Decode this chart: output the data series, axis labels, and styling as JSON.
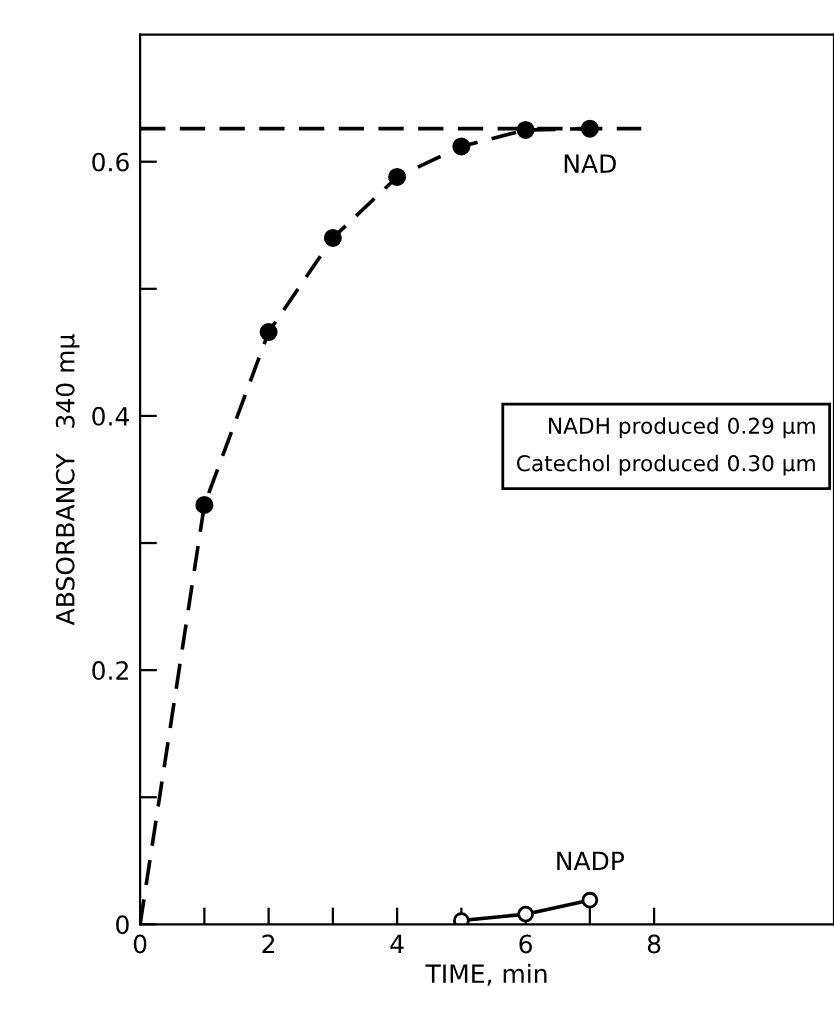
{
  "chart_data": {
    "type": "scatter",
    "xlabel": "TIME, min",
    "ylabel": "ABSORBANCY   340 mμ",
    "xlim": [
      0,
      10.8
    ],
    "ylim": [
      0,
      0.7
    ],
    "xticks": [
      0,
      {
        "value": 1,
        "label": null
      },
      2,
      {
        "value": 3,
        "label": null
      },
      4,
      {
        "value": 5,
        "label": null
      },
      6,
      {
        "value": 7,
        "label": null
      },
      8
    ],
    "yticks": [
      0,
      {
        "value": 0.1,
        "label": null
      },
      0.2,
      {
        "value": 0.3,
        "label": null
      },
      0.4,
      {
        "value": 0.5,
        "label": null
      },
      0.6
    ],
    "grid": false,
    "legend": false,
    "series": [
      {
        "type": "line",
        "color": "#000000",
        "line_style": "dashed",
        "marker": "none",
        "x": [
          0,
          1,
          2,
          3,
          4,
          5,
          6,
          7
        ],
        "values": [
          0,
          0.33,
          0.466,
          0.54,
          0.588,
          0.612,
          0.625,
          0.626
        ]
      },
      {
        "type": "line",
        "color": "#000000",
        "line_style": "dashed",
        "marker": "none",
        "x": [
          0,
          7.8
        ],
        "values": [
          0.626,
          0.626
        ]
      },
      {
        "name": "NAD",
        "color": "#000000",
        "marker": "circle",
        "x": [
          1,
          2,
          3,
          4,
          5,
          6,
          7
        ],
        "values": [
          0.33,
          0.466,
          0.54,
          0.588,
          0.612,
          0.625,
          0.626
        ]
      },
      {
        "type": "line",
        "name": "NADP",
        "color": "#000000",
        "marker": "circle",
        "line_style": "solid",
        "x": [
          5,
          6,
          7
        ],
        "values": [
          0.003,
          0.008,
          0.019
        ]
      }
    ],
    "annotations": [
      "NADH produced 0.29 μm",
      "Catechol produced 0.30 μm"
    ]
  }
}
